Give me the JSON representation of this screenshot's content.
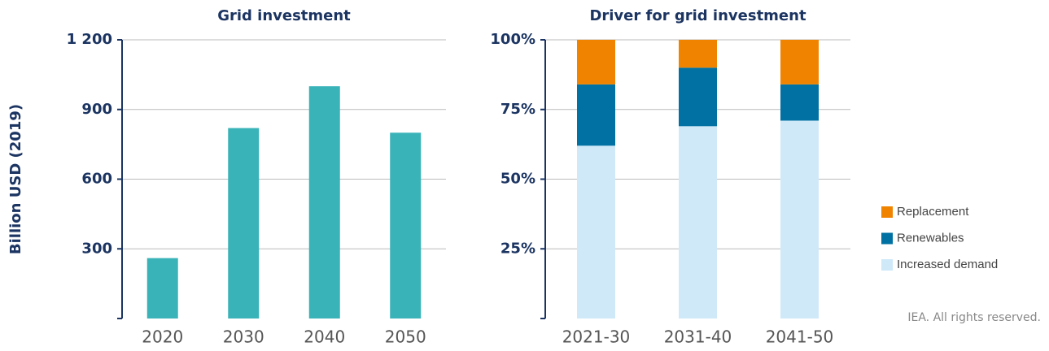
{
  "chart_data": [
    {
      "type": "bar",
      "title": "Grid investment",
      "y_label": "Billion USD (2019)",
      "categories": [
        "2020",
        "2030",
        "2040",
        "2050"
      ],
      "values": [
        260,
        820,
        1000,
        800
      ],
      "color": "#3ab3b8",
      "ylim": [
        0,
        1200
      ],
      "yticks": [
        300,
        600,
        900,
        {
          "value": 1200,
          "label": "1 200"
        }
      ],
      "grid": true
    },
    {
      "type": "bar",
      "stacked": true,
      "title": "Driver for grid investment",
      "categories": [
        "2021-30",
        "2031-40",
        "2041-50"
      ],
      "series": [
        {
          "name": "Increased demand",
          "color": "#cfe9f9",
          "values": [
            62,
            69,
            71
          ]
        },
        {
          "name": "Renewables",
          "color": "#0071a2",
          "values": [
            22,
            21,
            13
          ]
        },
        {
          "name": "Replacement",
          "color": "#f08300",
          "values": [
            16,
            10,
            16
          ]
        }
      ],
      "ylim": [
        0,
        100
      ],
      "yticks": [
        {
          "value": 25,
          "label": "25%"
        },
        {
          "value": 50,
          "label": "50%"
        },
        {
          "value": 75,
          "label": "75%"
        },
        {
          "value": 100,
          "label": "100%"
        }
      ],
      "grid": true,
      "legend": "right"
    }
  ],
  "note": "IEA. All rights reserved."
}
